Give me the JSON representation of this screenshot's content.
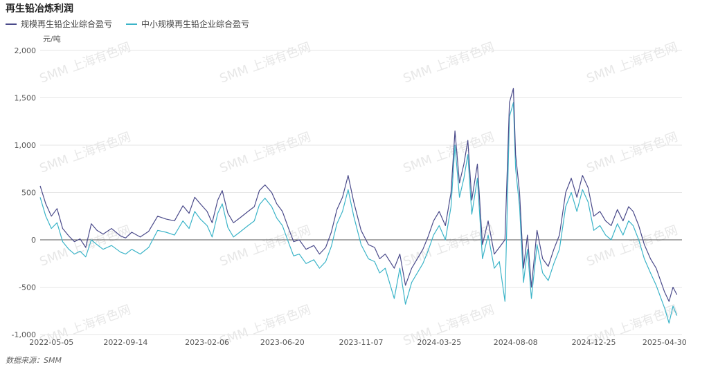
{
  "chart_data": {
    "type": "line",
    "title": "再生铅冶炼利润",
    "unit": "元/吨",
    "source": "数据来源：SMM",
    "watermark": "SMM 上海有色网",
    "ylim": [
      -1000,
      2000
    ],
    "yticks": [
      2000,
      1500,
      1000,
      500,
      0,
      -500,
      -1000
    ],
    "ytick_labels": [
      "2,000",
      "1,500",
      "1,000",
      "500",
      "0",
      "-500",
      "-1,000"
    ],
    "x_start": "2022-04-15",
    "x_end": "2025-05-31",
    "xticks": [
      "2022-05-05",
      "2022-09-14",
      "2023-02-06",
      "2023-06-20",
      "2023-11-07",
      "2024-03-25",
      "2024-08-08",
      "2024-12-25",
      "2025-04-30"
    ],
    "colors": {
      "series1": "#4a4a8a",
      "series2": "#3bb4c8",
      "zero_line": "#555555",
      "grid": "#e6e6e6"
    },
    "series": [
      {
        "name": "规模再生铅企业综合盈亏",
        "points": [
          [
            "2022-04-15",
            570
          ],
          [
            "2022-04-25",
            380
          ],
          [
            "2022-05-05",
            250
          ],
          [
            "2022-05-15",
            330
          ],
          [
            "2022-05-25",
            120
          ],
          [
            "2022-06-05",
            40
          ],
          [
            "2022-06-15",
            -20
          ],
          [
            "2022-06-25",
            10
          ],
          [
            "2022-07-05",
            -80
          ],
          [
            "2022-07-15",
            170
          ],
          [
            "2022-07-25",
            100
          ],
          [
            "2022-08-05",
            60
          ],
          [
            "2022-08-20",
            120
          ],
          [
            "2022-09-05",
            40
          ],
          [
            "2022-09-14",
            20
          ],
          [
            "2022-09-25",
            80
          ],
          [
            "2022-10-10",
            30
          ],
          [
            "2022-10-25",
            90
          ],
          [
            "2022-11-10",
            250
          ],
          [
            "2022-11-25",
            220
          ],
          [
            "2022-12-10",
            200
          ],
          [
            "2022-12-25",
            360
          ],
          [
            "2023-01-05",
            280
          ],
          [
            "2023-01-15",
            450
          ],
          [
            "2023-01-25",
            380
          ],
          [
            "2023-02-06",
            300
          ],
          [
            "2023-02-15",
            180
          ],
          [
            "2023-02-25",
            420
          ],
          [
            "2023-03-05",
            520
          ],
          [
            "2023-03-15",
            280
          ],
          [
            "2023-03-25",
            180
          ],
          [
            "2023-04-05",
            230
          ],
          [
            "2023-04-20",
            300
          ],
          [
            "2023-05-01",
            350
          ],
          [
            "2023-05-10",
            520
          ],
          [
            "2023-05-20",
            580
          ],
          [
            "2023-06-01",
            500
          ],
          [
            "2023-06-10",
            380
          ],
          [
            "2023-06-20",
            300
          ],
          [
            "2023-07-01",
            120
          ],
          [
            "2023-07-10",
            -20
          ],
          [
            "2023-07-20",
            0
          ],
          [
            "2023-08-01",
            -100
          ],
          [
            "2023-08-15",
            -60
          ],
          [
            "2023-08-25",
            -150
          ],
          [
            "2023-09-05",
            -80
          ],
          [
            "2023-09-15",
            80
          ],
          [
            "2023-09-25",
            320
          ],
          [
            "2023-10-05",
            450
          ],
          [
            "2023-10-15",
            680
          ],
          [
            "2023-10-25",
            400
          ],
          [
            "2023-11-07",
            100
          ],
          [
            "2023-11-20",
            -50
          ],
          [
            "2023-12-01",
            -80
          ],
          [
            "2023-12-10",
            -200
          ],
          [
            "2023-12-20",
            -150
          ],
          [
            "2024-01-05",
            -300
          ],
          [
            "2024-01-15",
            -150
          ],
          [
            "2024-01-25",
            -480
          ],
          [
            "2024-02-05",
            -300
          ],
          [
            "2024-02-15",
            -200
          ],
          [
            "2024-02-25",
            -100
          ],
          [
            "2024-03-05",
            30
          ],
          [
            "2024-03-15",
            200
          ],
          [
            "2024-03-25",
            300
          ],
          [
            "2024-04-05",
            150
          ],
          [
            "2024-04-15",
            500
          ],
          [
            "2024-04-22",
            1150
          ],
          [
            "2024-04-30",
            600
          ],
          [
            "2024-05-08",
            800
          ],
          [
            "2024-05-15",
            1050
          ],
          [
            "2024-05-22",
            420
          ],
          [
            "2024-06-01",
            800
          ],
          [
            "2024-06-10",
            -50
          ],
          [
            "2024-06-20",
            200
          ],
          [
            "2024-07-01",
            -150
          ],
          [
            "2024-07-10",
            -80
          ],
          [
            "2024-07-20",
            0
          ],
          [
            "2024-07-28",
            1450
          ],
          [
            "2024-08-04",
            1600
          ],
          [
            "2024-08-08",
            900
          ],
          [
            "2024-08-15",
            500
          ],
          [
            "2024-08-22",
            -300
          ],
          [
            "2024-08-29",
            50
          ],
          [
            "2024-09-05",
            -500
          ],
          [
            "2024-09-15",
            100
          ],
          [
            "2024-09-25",
            -200
          ],
          [
            "2024-10-05",
            -280
          ],
          [
            "2024-10-15",
            -100
          ],
          [
            "2024-10-25",
            50
          ],
          [
            "2024-11-05",
            500
          ],
          [
            "2024-11-15",
            650
          ],
          [
            "2024-11-25",
            450
          ],
          [
            "2024-12-05",
            680
          ],
          [
            "2024-12-15",
            550
          ],
          [
            "2024-12-25",
            250
          ],
          [
            "2025-01-05",
            300
          ],
          [
            "2025-01-15",
            200
          ],
          [
            "2025-01-25",
            150
          ],
          [
            "2025-02-05",
            320
          ],
          [
            "2025-02-15",
            200
          ],
          [
            "2025-02-25",
            350
          ],
          [
            "2025-03-05",
            300
          ],
          [
            "2025-03-15",
            150
          ],
          [
            "2025-03-25",
            -50
          ],
          [
            "2025-04-05",
            -200
          ],
          [
            "2025-04-15",
            -300
          ],
          [
            "2025-04-30",
            -550
          ],
          [
            "2025-05-08",
            -650
          ],
          [
            "2025-05-15",
            -500
          ],
          [
            "2025-05-22",
            -580
          ]
        ]
      },
      {
        "name": "中小规模再生铅企业综合盈亏",
        "points": [
          [
            "2022-04-15",
            450
          ],
          [
            "2022-04-25",
            250
          ],
          [
            "2022-05-05",
            120
          ],
          [
            "2022-05-15",
            180
          ],
          [
            "2022-05-25",
            -20
          ],
          [
            "2022-06-05",
            -100
          ],
          [
            "2022-06-15",
            -150
          ],
          [
            "2022-06-25",
            -120
          ],
          [
            "2022-07-05",
            -180
          ],
          [
            "2022-07-15",
            0
          ],
          [
            "2022-07-25",
            -50
          ],
          [
            "2022-08-05",
            -100
          ],
          [
            "2022-08-20",
            -60
          ],
          [
            "2022-09-05",
            -130
          ],
          [
            "2022-09-14",
            -150
          ],
          [
            "2022-09-25",
            -100
          ],
          [
            "2022-10-10",
            -150
          ],
          [
            "2022-10-25",
            -80
          ],
          [
            "2022-11-10",
            100
          ],
          [
            "2022-11-25",
            80
          ],
          [
            "2022-12-10",
            50
          ],
          [
            "2022-12-25",
            200
          ],
          [
            "2023-01-05",
            120
          ],
          [
            "2023-01-15",
            300
          ],
          [
            "2023-01-25",
            220
          ],
          [
            "2023-02-06",
            150
          ],
          [
            "2023-02-15",
            30
          ],
          [
            "2023-02-25",
            280
          ],
          [
            "2023-03-05",
            380
          ],
          [
            "2023-03-15",
            130
          ],
          [
            "2023-03-25",
            30
          ],
          [
            "2023-04-05",
            80
          ],
          [
            "2023-04-20",
            150
          ],
          [
            "2023-05-01",
            200
          ],
          [
            "2023-05-10",
            370
          ],
          [
            "2023-05-20",
            440
          ],
          [
            "2023-06-01",
            350
          ],
          [
            "2023-06-10",
            230
          ],
          [
            "2023-06-20",
            150
          ],
          [
            "2023-07-01",
            -30
          ],
          [
            "2023-07-10",
            -170
          ],
          [
            "2023-07-20",
            -150
          ],
          [
            "2023-08-01",
            -250
          ],
          [
            "2023-08-15",
            -210
          ],
          [
            "2023-08-25",
            -300
          ],
          [
            "2023-09-05",
            -230
          ],
          [
            "2023-09-15",
            -70
          ],
          [
            "2023-09-25",
            170
          ],
          [
            "2023-10-05",
            300
          ],
          [
            "2023-10-15",
            530
          ],
          [
            "2023-10-25",
            250
          ],
          [
            "2023-11-07",
            -50
          ],
          [
            "2023-11-20",
            -200
          ],
          [
            "2023-12-01",
            -230
          ],
          [
            "2023-12-10",
            -350
          ],
          [
            "2023-12-20",
            -300
          ],
          [
            "2024-01-05",
            -620
          ],
          [
            "2024-01-15",
            -300
          ],
          [
            "2024-01-25",
            -680
          ],
          [
            "2024-02-05",
            -450
          ],
          [
            "2024-02-15",
            -350
          ],
          [
            "2024-02-25",
            -250
          ],
          [
            "2024-03-05",
            -120
          ],
          [
            "2024-03-15",
            50
          ],
          [
            "2024-03-25",
            150
          ],
          [
            "2024-04-05",
            0
          ],
          [
            "2024-04-15",
            350
          ],
          [
            "2024-04-22",
            1000
          ],
          [
            "2024-04-30",
            450
          ],
          [
            "2024-05-08",
            650
          ],
          [
            "2024-05-15",
            900
          ],
          [
            "2024-05-22",
            270
          ],
          [
            "2024-06-01",
            650
          ],
          [
            "2024-06-10",
            -200
          ],
          [
            "2024-06-20",
            50
          ],
          [
            "2024-07-01",
            -300
          ],
          [
            "2024-07-10",
            -230
          ],
          [
            "2024-07-20",
            -650
          ],
          [
            "2024-07-28",
            1300
          ],
          [
            "2024-08-04",
            1450
          ],
          [
            "2024-08-08",
            750
          ],
          [
            "2024-08-15",
            350
          ],
          [
            "2024-08-22",
            -450
          ],
          [
            "2024-08-29",
            -100
          ],
          [
            "2024-09-05",
            -620
          ],
          [
            "2024-09-15",
            -50
          ],
          [
            "2024-09-25",
            -350
          ],
          [
            "2024-10-05",
            -430
          ],
          [
            "2024-10-15",
            -250
          ],
          [
            "2024-10-25",
            -100
          ],
          [
            "2024-11-05",
            350
          ],
          [
            "2024-11-15",
            500
          ],
          [
            "2024-11-25",
            300
          ],
          [
            "2024-12-05",
            530
          ],
          [
            "2024-12-15",
            400
          ],
          [
            "2024-12-25",
            100
          ],
          [
            "2025-01-05",
            150
          ],
          [
            "2025-01-15",
            50
          ],
          [
            "2025-01-25",
            0
          ],
          [
            "2025-02-05",
            170
          ],
          [
            "2025-02-15",
            50
          ],
          [
            "2025-02-25",
            200
          ],
          [
            "2025-03-05",
            150
          ],
          [
            "2025-03-15",
            0
          ],
          [
            "2025-03-25",
            -200
          ],
          [
            "2025-04-05",
            -350
          ],
          [
            "2025-04-15",
            -480
          ],
          [
            "2025-04-30",
            -720
          ],
          [
            "2025-05-08",
            -880
          ],
          [
            "2025-05-15",
            -700
          ],
          [
            "2025-05-22",
            -800
          ]
        ]
      }
    ]
  }
}
